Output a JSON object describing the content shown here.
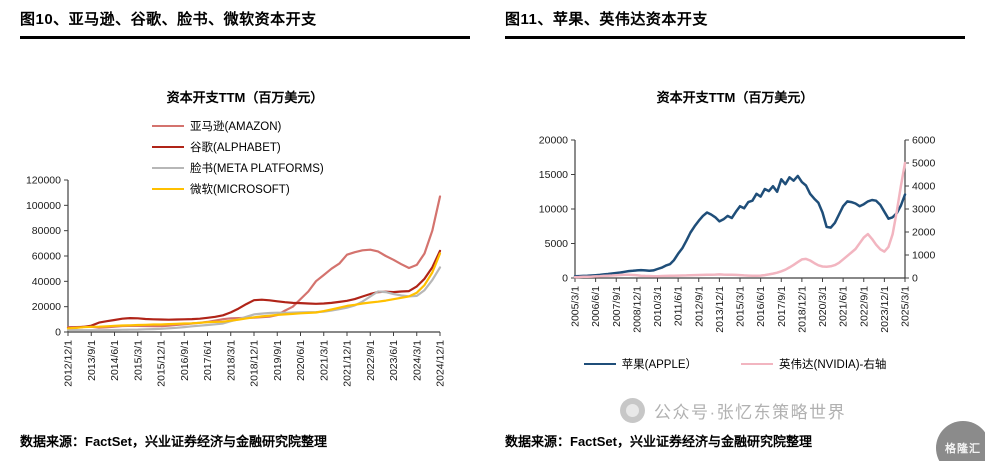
{
  "colors": {
    "amazon": "#d4736e",
    "alphabet": "#b02418",
    "meta": "#b7b7b7",
    "microsoft": "#ffc000",
    "apple": "#1f4e79",
    "nvidia": "#f2b5c0",
    "axis": "#404040",
    "tick_text": "#1a1a1a"
  },
  "panels": [
    {
      "header": "图10、亚马逊、谷歌、脸书、微软资本开支",
      "source": "数据来源：FactSet，兴业证券经济与金融研究院整理"
    },
    {
      "header": "图11、苹果、英伟达资本开支",
      "source": "数据来源：FactSet，兴业证券经济与金融研究院整理"
    }
  ],
  "watermark": {
    "text": "公众号·张忆东策略世界",
    "corner_logo_text": "格隆汇"
  },
  "chart_data": [
    {
      "type": "line",
      "title": "资本开支TTM（百万美元）",
      "xlabel": "",
      "ylabel": "",
      "ylim": [
        0,
        120000
      ],
      "ytick_step": 20000,
      "grid": false,
      "legend_position": "top-left-inside",
      "x_frequency": "quarterly",
      "points_per_tick": 3,
      "x_tick_labels": [
        "2012/12/1",
        "2013/9/1",
        "2014/6/1",
        "2015/3/1",
        "2015/12/1",
        "2016/9/1",
        "2017/6/1",
        "2018/3/1",
        "2018/12/1",
        "2019/9/1",
        "2020/6/1",
        "2021/3/1",
        "2021/12/1",
        "2022/9/1",
        "2023/6/1",
        "2024/3/1",
        "2024/12/1"
      ],
      "series": [
        {
          "key": "amazon",
          "name": "亚马逊(AMAZON)",
          "color": "#d4736e",
          "line_width": 2.2,
          "axis": "left",
          "values": [
            3800,
            3900,
            4000,
            4100,
            3400,
            3700,
            4300,
            4700,
            4900,
            4800,
            4700,
            4600,
            4600,
            5000,
            5600,
            6100,
            6700,
            7300,
            8000,
            9000,
            10100,
            10800,
            11000,
            11100,
            11300,
            11700,
            12100,
            13400,
            16900,
            20000,
            26000,
            32000,
            40100,
            45000,
            50000,
            54000,
            61000,
            63000,
            64500,
            65000,
            63600,
            60000,
            57000,
            53500,
            50500,
            53000,
            62000,
            80000,
            107000
          ]
        },
        {
          "key": "alphabet",
          "name": "谷歌(ALPHABET)",
          "color": "#b02418",
          "line_width": 2.2,
          "axis": "left",
          "values": [
            3300,
            3500,
            4000,
            5000,
            7400,
            8500,
            9500,
            10500,
            11000,
            10800,
            10300,
            10000,
            9900,
            9700,
            9900,
            10000,
            10200,
            10500,
            11200,
            12000,
            13200,
            15500,
            18500,
            22000,
            25100,
            25500,
            25000,
            24200,
            23500,
            23000,
            22800,
            22500,
            22300,
            22500,
            23000,
            23800,
            24600,
            26000,
            28000,
            30000,
            31500,
            31800,
            31500,
            32000,
            32300,
            36000,
            42000,
            51000,
            64000
          ]
        },
        {
          "key": "meta",
          "name": "脸书(META PLATFORMS)",
          "color": "#b7b7b7",
          "line_width": 2.2,
          "axis": "left",
          "values": [
            1600,
            1500,
            1400,
            1400,
            1400,
            1500,
            1600,
            1700,
            1800,
            1900,
            2100,
            2300,
            2500,
            2900,
            3300,
            3900,
            4500,
            5000,
            5500,
            6100,
            6700,
            8500,
            10000,
            12000,
            13900,
            14500,
            15000,
            15200,
            15100,
            15300,
            15500,
            15600,
            15700,
            16000,
            17000,
            18000,
            19200,
            21000,
            24000,
            28000,
            32000,
            31500,
            30000,
            28800,
            28100,
            28500,
            33000,
            41000,
            51000
          ]
        },
        {
          "key": "microsoft",
          "name": "微软(MICROSOFT)",
          "color": "#ffc000",
          "line_width": 2.2,
          "axis": "left",
          "values": [
            2900,
            3200,
            3800,
            4100,
            4200,
            4500,
            4900,
            5100,
            5300,
            5500,
            5700,
            5900,
            5900,
            6200,
            6500,
            6700,
            6900,
            7300,
            7700,
            8000,
            8100,
            8900,
            9800,
            10700,
            11600,
            12300,
            12900,
            13500,
            13900,
            14300,
            14800,
            15100,
            15400,
            16500,
            17800,
            19200,
            20600,
            21500,
            22500,
            23300,
            23900,
            24800,
            25900,
            27000,
            28100,
            31000,
            37000,
            47000,
            62000
          ]
        }
      ]
    },
    {
      "type": "line",
      "title": "资本开支TTM（百万美元）",
      "xlabel": "",
      "ylabel": "",
      "ylim": [
        0,
        20000
      ],
      "ytick_step": 5000,
      "y2lim": [
        0,
        6000
      ],
      "y2tick_step": 1000,
      "grid": false,
      "legend_position": "bottom",
      "x_frequency": "quarterly",
      "points_per_tick": 5,
      "x_tick_labels": [
        "2005/3/1",
        "2006/6/1",
        "2007/9/1",
        "2008/12/1",
        "2010/3/1",
        "2011/6/1",
        "2012/9/1",
        "2013/12/1",
        "2015/3/1",
        "2016/6/1",
        "2017/9/1",
        "2018/12/1",
        "2020/3/1",
        "2021/6/1",
        "2022/9/1",
        "2023/12/1",
        "2025/3/1"
      ],
      "series": [
        {
          "key": "apple",
          "name": "苹果(APPLE）",
          "color": "#1f4e79",
          "line_width": 2.5,
          "axis": "left",
          "values": [
            250,
            280,
            300,
            320,
            360,
            400,
            450,
            520,
            580,
            650,
            720,
            800,
            900,
            1000,
            1050,
            1100,
            1150,
            1100,
            1050,
            1100,
            1300,
            1500,
            1800,
            2000,
            2600,
            3500,
            4300,
            5400,
            6600,
            7500,
            8300,
            9000,
            9500,
            9200,
            8800,
            8200,
            8500,
            9000,
            8700,
            9600,
            10400,
            10100,
            11000,
            11200,
            12200,
            11800,
            12900,
            12600,
            13300,
            12500,
            14300,
            13600,
            14600,
            14100,
            14800,
            13900,
            13400,
            12200,
            11500,
            10900,
            9500,
            7400,
            7300,
            8000,
            9200,
            10400,
            11100,
            11000,
            10800,
            10400,
            10700,
            11100,
            11300,
            11200,
            10600,
            9600,
            8600,
            8800,
            9400,
            10500,
            12100
          ]
        },
        {
          "key": "nvidia",
          "name": "英伟达(NVIDIA)-右轴",
          "color": "#f2b5c0",
          "line_width": 2.5,
          "axis": "right",
          "values": [
            40,
            45,
            50,
            55,
            60,
            70,
            80,
            90,
            100,
            110,
            120,
            130,
            140,
            140,
            130,
            120,
            100,
            90,
            85,
            80,
            80,
            85,
            90,
            95,
            100,
            105,
            110,
            115,
            120,
            125,
            130,
            135,
            140,
            145,
            150,
            155,
            150,
            145,
            140,
            135,
            125,
            115,
            105,
            95,
            95,
            105,
            125,
            155,
            190,
            230,
            290,
            360,
            460,
            570,
            690,
            810,
            830,
            760,
            650,
            550,
            500,
            490,
            510,
            560,
            660,
            810,
            960,
            1110,
            1260,
            1510,
            1760,
            1910,
            1700,
            1450,
            1250,
            1150,
            1350,
            1900,
            2900,
            4000,
            5000
          ]
        }
      ]
    }
  ]
}
